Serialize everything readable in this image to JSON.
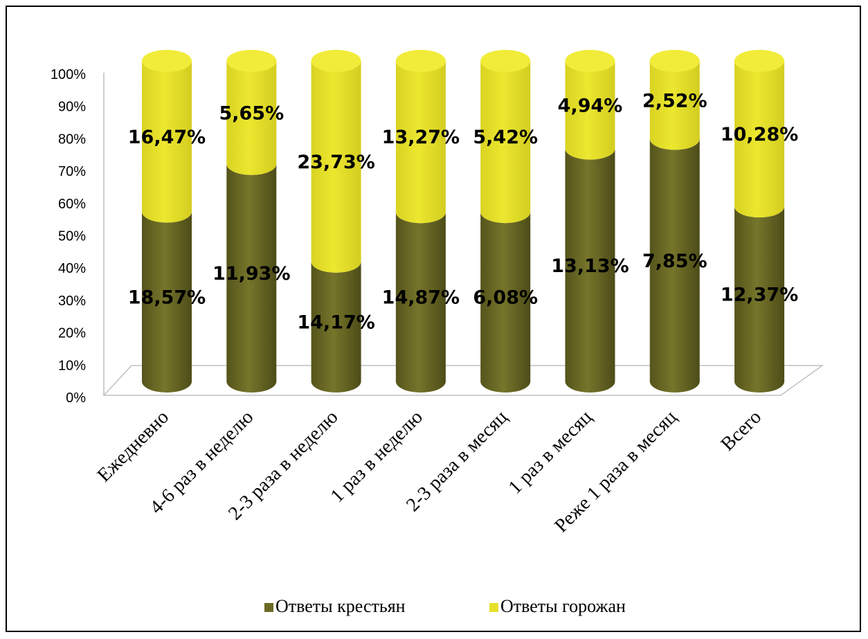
{
  "chart_data": {
    "type": "bar",
    "stacked": true,
    "percent_stacked": true,
    "three_d": true,
    "categories": [
      "Ежедневно",
      "4-6 раз в неделю",
      "2-3 раза в неделю",
      "1 раз в неделю",
      "2-3 раза в месяц",
      "1 раз в месяц",
      "Реже 1 раза в месяц",
      "Всего"
    ],
    "series": [
      {
        "name": "Ответы крестьян",
        "color": "#6b6a24",
        "values": [
          18.57,
          11.93,
          14.17,
          14.87,
          6.08,
          13.13,
          7.85,
          12.37
        ],
        "labels": [
          "18,57%",
          "11,93%",
          "14,17%",
          "14,87%",
          "6,08%",
          "13,13%",
          "7,85%",
          "12,37%"
        ]
      },
      {
        "name": "Ответы горожан",
        "color": "#e6e02a",
        "values": [
          16.47,
          5.65,
          23.73,
          13.27,
          5.42,
          4.94,
          2.52,
          10.28
        ],
        "labels": [
          "16,47%",
          "5,65%",
          "23,73%",
          "13,27%",
          "5,42%",
          "4,94%",
          "2,52%",
          "10,28%"
        ]
      }
    ],
    "y_ticks": [
      "0%",
      "10%",
      "20%",
      "30%",
      "40%",
      "50%",
      "60%",
      "70%",
      "80%",
      "90%",
      "100%"
    ],
    "ylim": [
      0,
      100
    ],
    "legend_position": "bottom",
    "grid": false
  }
}
